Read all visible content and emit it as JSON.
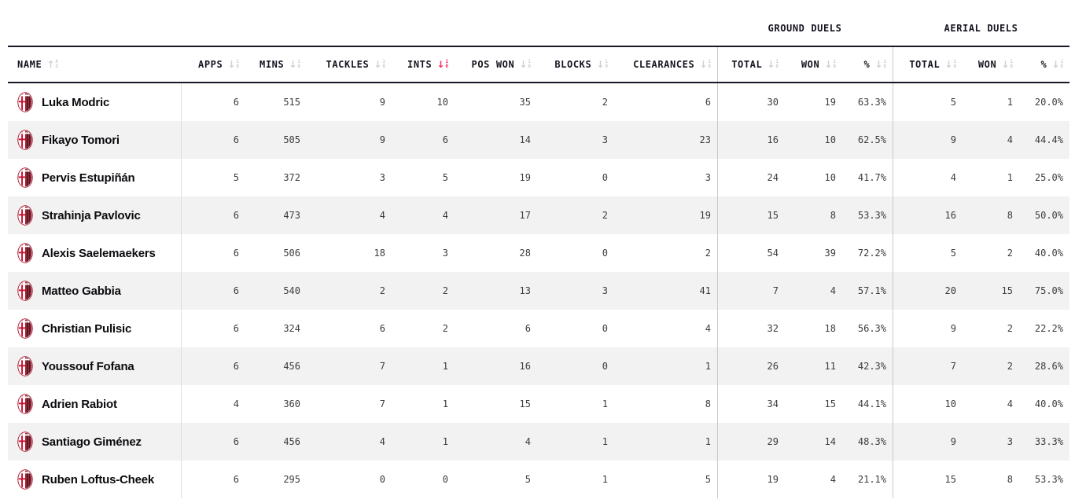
{
  "colors": {
    "sort_active_accent": "#f72a5f",
    "crest_red": "#c8102e",
    "crest_black": "#181818",
    "row_stripe": "#f2f2f2"
  },
  "table": {
    "groups": [
      {
        "label": "GROUND DUELS"
      },
      {
        "label": "AERIAL DUELS"
      }
    ],
    "sort_glyphs": {
      "alpha_arrow": "↑",
      "alpha_top": "A",
      "alpha_bottom": "Z",
      "numeric_arrow": "↓",
      "numeric_top": "1",
      "numeric_bottom": "0"
    },
    "columns": [
      {
        "key": "name",
        "label": "NAME",
        "sort": "alpha",
        "active": false
      },
      {
        "key": "apps",
        "label": "APPS",
        "sort": "numeric",
        "active": false
      },
      {
        "key": "mins",
        "label": "MINS",
        "sort": "numeric",
        "active": false
      },
      {
        "key": "tackles",
        "label": "TACKLES",
        "sort": "numeric",
        "active": false
      },
      {
        "key": "ints",
        "label": "INTS",
        "sort": "numeric",
        "active": true
      },
      {
        "key": "pos-won",
        "label": "POS WON",
        "sort": "numeric",
        "active": false
      },
      {
        "key": "blocks",
        "label": "BLOCKS",
        "sort": "numeric",
        "active": false
      },
      {
        "key": "clearances",
        "label": "CLEARANCES",
        "sort": "numeric",
        "active": false
      },
      {
        "key": "gd-total",
        "label": "TOTAL",
        "sort": "numeric",
        "active": false
      },
      {
        "key": "gd-won",
        "label": "WON",
        "sort": "numeric",
        "active": false
      },
      {
        "key": "gd-pct",
        "label": "%",
        "sort": "numeric",
        "active": false
      },
      {
        "key": "ad-total",
        "label": "TOTAL",
        "sort": "numeric",
        "active": false
      },
      {
        "key": "ad-won",
        "label": "WON",
        "sort": "numeric",
        "active": false
      },
      {
        "key": "ad-pct",
        "label": "%",
        "sort": "numeric",
        "active": false
      }
    ],
    "rows": [
      {
        "name": "Luka Modric",
        "values": [
          "6",
          "515",
          "9",
          "10",
          "35",
          "2",
          "6",
          "30",
          "19",
          "63.3%",
          "5",
          "1",
          "20.0%"
        ]
      },
      {
        "name": "Fikayo Tomori",
        "values": [
          "6",
          "505",
          "9",
          "6",
          "14",
          "3",
          "23",
          "16",
          "10",
          "62.5%",
          "9",
          "4",
          "44.4%"
        ]
      },
      {
        "name": "Pervis Estupiñán",
        "values": [
          "5",
          "372",
          "3",
          "5",
          "19",
          "0",
          "3",
          "24",
          "10",
          "41.7%",
          "4",
          "1",
          "25.0%"
        ]
      },
      {
        "name": "Strahinja Pavlovic",
        "values": [
          "6",
          "473",
          "4",
          "4",
          "17",
          "2",
          "19",
          "15",
          "8",
          "53.3%",
          "16",
          "8",
          "50.0%"
        ]
      },
      {
        "name": "Alexis Saelemaekers",
        "values": [
          "6",
          "506",
          "18",
          "3",
          "28",
          "0",
          "2",
          "54",
          "39",
          "72.2%",
          "5",
          "2",
          "40.0%"
        ]
      },
      {
        "name": "Matteo Gabbia",
        "values": [
          "6",
          "540",
          "2",
          "2",
          "13",
          "3",
          "41",
          "7",
          "4",
          "57.1%",
          "20",
          "15",
          "75.0%"
        ]
      },
      {
        "name": "Christian Pulisic",
        "values": [
          "6",
          "324",
          "6",
          "2",
          "6",
          "0",
          "4",
          "32",
          "18",
          "56.3%",
          "9",
          "2",
          "22.2%"
        ]
      },
      {
        "name": "Youssouf Fofana",
        "values": [
          "6",
          "456",
          "7",
          "1",
          "16",
          "0",
          "1",
          "26",
          "11",
          "42.3%",
          "7",
          "2",
          "28.6%"
        ]
      },
      {
        "name": "Adrien Rabiot",
        "values": [
          "4",
          "360",
          "7",
          "1",
          "15",
          "1",
          "8",
          "34",
          "15",
          "44.1%",
          "10",
          "4",
          "40.0%"
        ]
      },
      {
        "name": "Santiago Giménez",
        "values": [
          "6",
          "456",
          "4",
          "1",
          "4",
          "1",
          "1",
          "29",
          "14",
          "48.3%",
          "9",
          "3",
          "33.3%"
        ]
      },
      {
        "name": "Ruben Loftus-Cheek",
        "values": [
          "6",
          "295",
          "0",
          "0",
          "5",
          "1",
          "5",
          "19",
          "4",
          "21.1%",
          "15",
          "8",
          "53.3%"
        ]
      }
    ]
  }
}
